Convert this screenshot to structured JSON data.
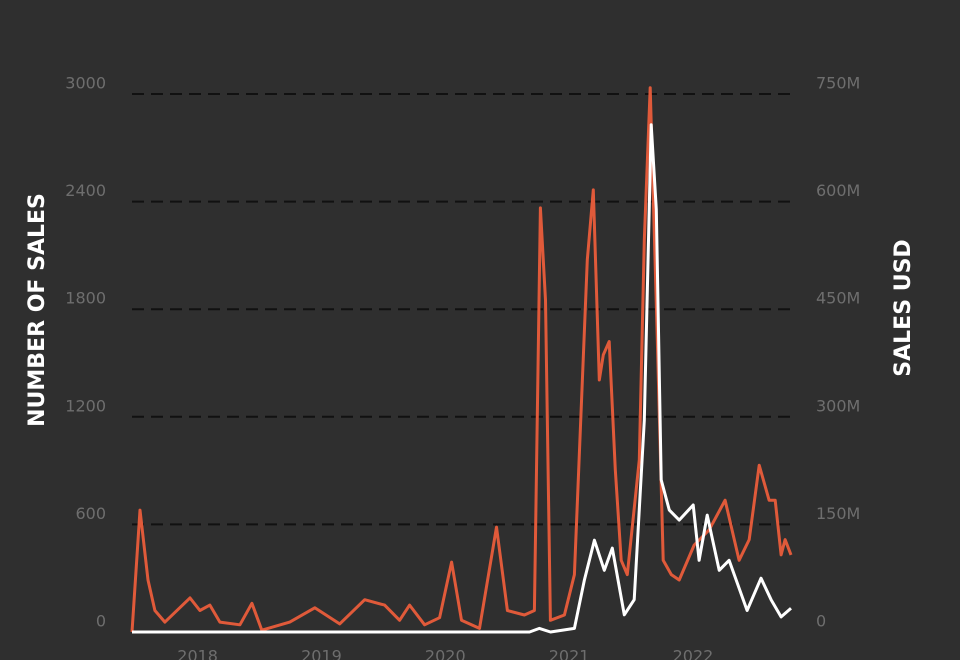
{
  "chart_data": {
    "type": "line",
    "y_label": "NUMBER OF SALES",
    "y2_label": "SALES USD",
    "xlim": [
      2017.47,
      2022.8
    ],
    "xticks": [
      2018,
      2019,
      2020,
      2021,
      2022
    ],
    "ylim": [
      0,
      3000
    ],
    "yticks": [
      0,
      600,
      1200,
      1800,
      2400,
      3000
    ],
    "y2lim": [
      0,
      750000000
    ],
    "y2ticks": [
      0,
      {
        "value": 150000000,
        "label": "150M"
      },
      {
        "value": 300000000,
        "label": "300M"
      },
      {
        "value": 450000000,
        "label": "450M"
      },
      {
        "value": 600000000,
        "label": "600M"
      },
      {
        "value": 750000000,
        "label": "750M"
      }
    ],
    "grid": true,
    "series": [
      {
        "color": "#e05a3a",
        "x": [
          2017.47,
          2017.535,
          2017.599,
          2017.655,
          2017.736,
          2017.938,
          2018.018,
          2018.099,
          2018.18,
          2018.341,
          2018.438,
          2018.518,
          2018.744,
          2018.946,
          2019.147,
          2019.349,
          2019.51,
          2019.631,
          2019.712,
          2019.833,
          2019.954,
          2020.051,
          2020.131,
          2020.276,
          2020.414,
          2020.502,
          2020.639,
          2020.72,
          2020.768,
          2020.809,
          2020.849,
          2020.962,
          2021.043,
          2021.147,
          2021.195,
          2021.244,
          2021.276,
          2021.324,
          2021.373,
          2021.421,
          2021.47,
          2021.567,
          2021.607,
          2021.655,
          2021.712,
          2021.76,
          2021.825,
          2021.889,
          2022.01,
          2022.131,
          2022.26,
          2022.373,
          2022.454,
          2022.535,
          2022.615,
          2022.664,
          2022.712,
          2022.744,
          2022.792
        ],
        "values": [
          0,
          680,
          290,
          120,
          55,
          190,
          120,
          150,
          55,
          40,
          160,
          10,
          55,
          135,
          45,
          180,
          150,
          65,
          150,
          40,
          80,
          390,
          65,
          20,
          585,
          120,
          95,
          120,
          2365,
          1850,
          65,
          95,
          320,
          2075,
          2465,
          1405,
          1545,
          1620,
          905,
          400,
          320,
          960,
          2185,
          3035,
          1630,
          400,
          320,
          290,
          485,
          570,
          735,
          400,
          515,
          930,
          735,
          735,
          430,
          515,
          430
        ]
      },
      {
        "color": "#ffffff",
        "axis": "y2",
        "x": [
          2017.47,
          2020.68,
          2020.76,
          2020.85,
          2021.043,
          2021.123,
          2021.204,
          2021.284,
          2021.349,
          2021.446,
          2021.526,
          2021.607,
          2021.663,
          2021.704,
          2021.744,
          2021.809,
          2021.889,
          2022.002,
          2022.05,
          2022.115,
          2022.212,
          2022.292,
          2022.437,
          2022.55,
          2022.631,
          2022.712,
          2022.792
        ],
        "values": [
          0,
          0,
          5000000,
          0,
          5000000,
          72000000,
          128000000,
          86000000,
          117000000,
          24000000,
          45000000,
          295000000,
          707000000,
          589000000,
          212000000,
          170000000,
          156000000,
          177000000,
          100000000,
          163000000,
          86000000,
          100000000,
          30000000,
          75000000,
          45000000,
          21000000,
          33000000
        ]
      }
    ]
  }
}
